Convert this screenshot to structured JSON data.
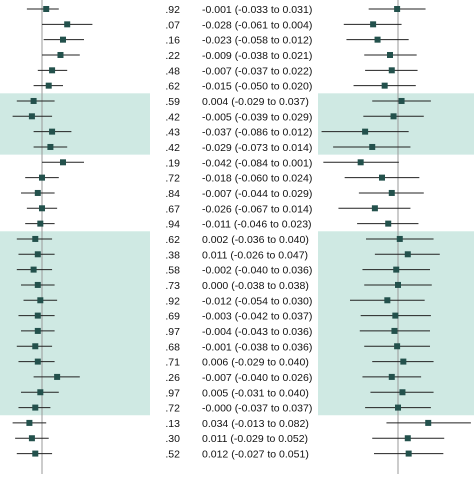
{
  "colors": {
    "band": "#cfe9e3",
    "marker": "#23514c",
    "whisker": "#222222",
    "reference_line": "#999999",
    "text": "#111111"
  },
  "chart_data": {
    "type": "forest",
    "p_values": [
      ".92",
      ".07",
      ".16",
      ".22",
      ".48",
      ".62",
      ".59",
      ".42",
      ".43",
      ".42",
      ".19",
      ".72",
      ".84",
      ".67",
      ".94",
      ".62",
      ".38",
      ".58",
      ".73",
      ".92",
      ".69",
      ".97",
      ".68",
      ".71",
      ".26",
      ".97",
      ".72",
      ".13",
      ".30",
      ".52"
    ],
    "estimates": [
      "-0.001 (-0.033 to 0.031)",
      "-0.028 (-0.061 to 0.004)",
      "-0.023 (-0.058 to 0.012)",
      "-0.009 (-0.038 to 0.021)",
      "-0.007 (-0.037 to 0.022)",
      "-0.015 (-0.050 to 0.020)",
      "0.004 (-0.029 to 0.037)",
      "-0.005 (-0.039 to 0.029)",
      "-0.037 (-0.086 to 0.012)",
      "-0.029 (-0.073 to 0.014)",
      "-0.042 (-0.084 to 0.001)",
      "-0.018 (-0.060 to 0.024)",
      "-0.007 (-0.044 to 0.029)",
      "-0.026 (-0.067 to 0.014)",
      "-0.011 (-0.046 to 0.023)",
      "0.002 (-0.036 to 0.040)",
      "0.011 (-0.026 to 0.047)",
      "-0.002 (-0.040 to 0.036)",
      "0.000 (-0.038 to 0.038)",
      "-0.012 (-0.054 to 0.030)",
      "-0.003 (-0.042 to 0.037)",
      "-0.004 (-0.043 to 0.036)",
      "-0.001 (-0.038 to 0.036)",
      "0.006 (-0.029 to 0.040)",
      "-0.007 (-0.040 to 0.026)",
      "0.005 (-0.031 to 0.040)",
      "-0.000 (-0.037 to 0.037)",
      "0.034 (-0.013 to 0.082)",
      "0.011 (-0.029 to 0.052)",
      "0.012 (-0.027 to 0.051)"
    ],
    "left_panel": {
      "points": [
        {
          "est": 0.005,
          "lo": -0.018,
          "hi": 0.02
        },
        {
          "est": 0.03,
          "lo": 0.0,
          "hi": 0.06
        },
        {
          "est": 0.025,
          "lo": 0.002,
          "hi": 0.05
        },
        {
          "est": 0.022,
          "lo": 0.0,
          "hi": 0.045
        },
        {
          "est": 0.012,
          "lo": -0.005,
          "hi": 0.03
        },
        {
          "est": 0.008,
          "lo": -0.01,
          "hi": 0.025
        },
        {
          "est": -0.01,
          "lo": -0.03,
          "hi": 0.015
        },
        {
          "est": -0.012,
          "lo": -0.035,
          "hi": 0.012
        },
        {
          "est": 0.012,
          "lo": -0.01,
          "hi": 0.035
        },
        {
          "est": 0.01,
          "lo": -0.01,
          "hi": 0.03
        },
        {
          "est": 0.025,
          "lo": 0.0,
          "hi": 0.05
        },
        {
          "est": 0.0,
          "lo": -0.02,
          "hi": 0.02
        },
        {
          "est": -0.005,
          "lo": -0.025,
          "hi": 0.015
        },
        {
          "est": 0.0,
          "lo": -0.018,
          "hi": 0.018
        },
        {
          "est": -0.002,
          "lo": -0.02,
          "hi": 0.015
        },
        {
          "est": -0.008,
          "lo": -0.03,
          "hi": 0.012
        },
        {
          "est": -0.005,
          "lo": -0.028,
          "hi": 0.015
        },
        {
          "est": -0.01,
          "lo": -0.03,
          "hi": 0.012
        },
        {
          "est": -0.005,
          "lo": -0.025,
          "hi": 0.015
        },
        {
          "est": -0.002,
          "lo": -0.022,
          "hi": 0.018
        },
        {
          "est": -0.005,
          "lo": -0.028,
          "hi": 0.015
        },
        {
          "est": -0.005,
          "lo": -0.025,
          "hi": 0.015
        },
        {
          "est": -0.008,
          "lo": -0.03,
          "hi": 0.012
        },
        {
          "est": -0.005,
          "lo": -0.028,
          "hi": 0.015
        },
        {
          "est": 0.018,
          "lo": -0.01,
          "hi": 0.045
        },
        {
          "est": -0.002,
          "lo": -0.025,
          "hi": 0.02
        },
        {
          "est": -0.008,
          "lo": -0.028,
          "hi": 0.01
        },
        {
          "est": -0.015,
          "lo": -0.035,
          "hi": 0.005
        },
        {
          "est": -0.012,
          "lo": -0.032,
          "hi": 0.008
        },
        {
          "est": -0.008,
          "lo": -0.03,
          "hi": 0.012
        }
      ]
    },
    "right_panel": {
      "points": [
        {
          "est": -0.001,
          "lo": -0.033,
          "hi": 0.031
        },
        {
          "est": -0.028,
          "lo": -0.061,
          "hi": 0.004
        },
        {
          "est": -0.023,
          "lo": -0.058,
          "hi": 0.012
        },
        {
          "est": -0.009,
          "lo": -0.038,
          "hi": 0.021
        },
        {
          "est": -0.007,
          "lo": -0.037,
          "hi": 0.022
        },
        {
          "est": -0.015,
          "lo": -0.05,
          "hi": 0.02
        },
        {
          "est": 0.004,
          "lo": -0.029,
          "hi": 0.037
        },
        {
          "est": -0.005,
          "lo": -0.039,
          "hi": 0.029
        },
        {
          "est": -0.037,
          "lo": -0.086,
          "hi": 0.012
        },
        {
          "est": -0.029,
          "lo": -0.073,
          "hi": 0.014
        },
        {
          "est": -0.042,
          "lo": -0.084,
          "hi": 0.001
        },
        {
          "est": -0.018,
          "lo": -0.06,
          "hi": 0.024
        },
        {
          "est": -0.007,
          "lo": -0.044,
          "hi": 0.029
        },
        {
          "est": -0.026,
          "lo": -0.067,
          "hi": 0.014
        },
        {
          "est": -0.011,
          "lo": -0.046,
          "hi": 0.023
        },
        {
          "est": 0.002,
          "lo": -0.036,
          "hi": 0.04
        },
        {
          "est": 0.011,
          "lo": -0.026,
          "hi": 0.047
        },
        {
          "est": -0.002,
          "lo": -0.04,
          "hi": 0.036
        },
        {
          "est": 0.0,
          "lo": -0.038,
          "hi": 0.038
        },
        {
          "est": -0.012,
          "lo": -0.054,
          "hi": 0.03
        },
        {
          "est": -0.003,
          "lo": -0.042,
          "hi": 0.037
        },
        {
          "est": -0.004,
          "lo": -0.043,
          "hi": 0.036
        },
        {
          "est": -0.001,
          "lo": -0.038,
          "hi": 0.036
        },
        {
          "est": 0.006,
          "lo": -0.029,
          "hi": 0.04
        },
        {
          "est": -0.007,
          "lo": -0.04,
          "hi": 0.026
        },
        {
          "est": 0.005,
          "lo": -0.031,
          "hi": 0.04
        },
        {
          "est": -0.0,
          "lo": -0.037,
          "hi": 0.037
        },
        {
          "est": 0.034,
          "lo": -0.013,
          "hi": 0.082
        },
        {
          "est": 0.011,
          "lo": -0.029,
          "hi": 0.052
        },
        {
          "est": 0.012,
          "lo": -0.027,
          "hi": 0.051
        }
      ]
    },
    "highlighted_row_groups": [
      [
        6,
        9
      ],
      [
        15,
        26
      ]
    ],
    "grid": false,
    "legend": "none"
  }
}
